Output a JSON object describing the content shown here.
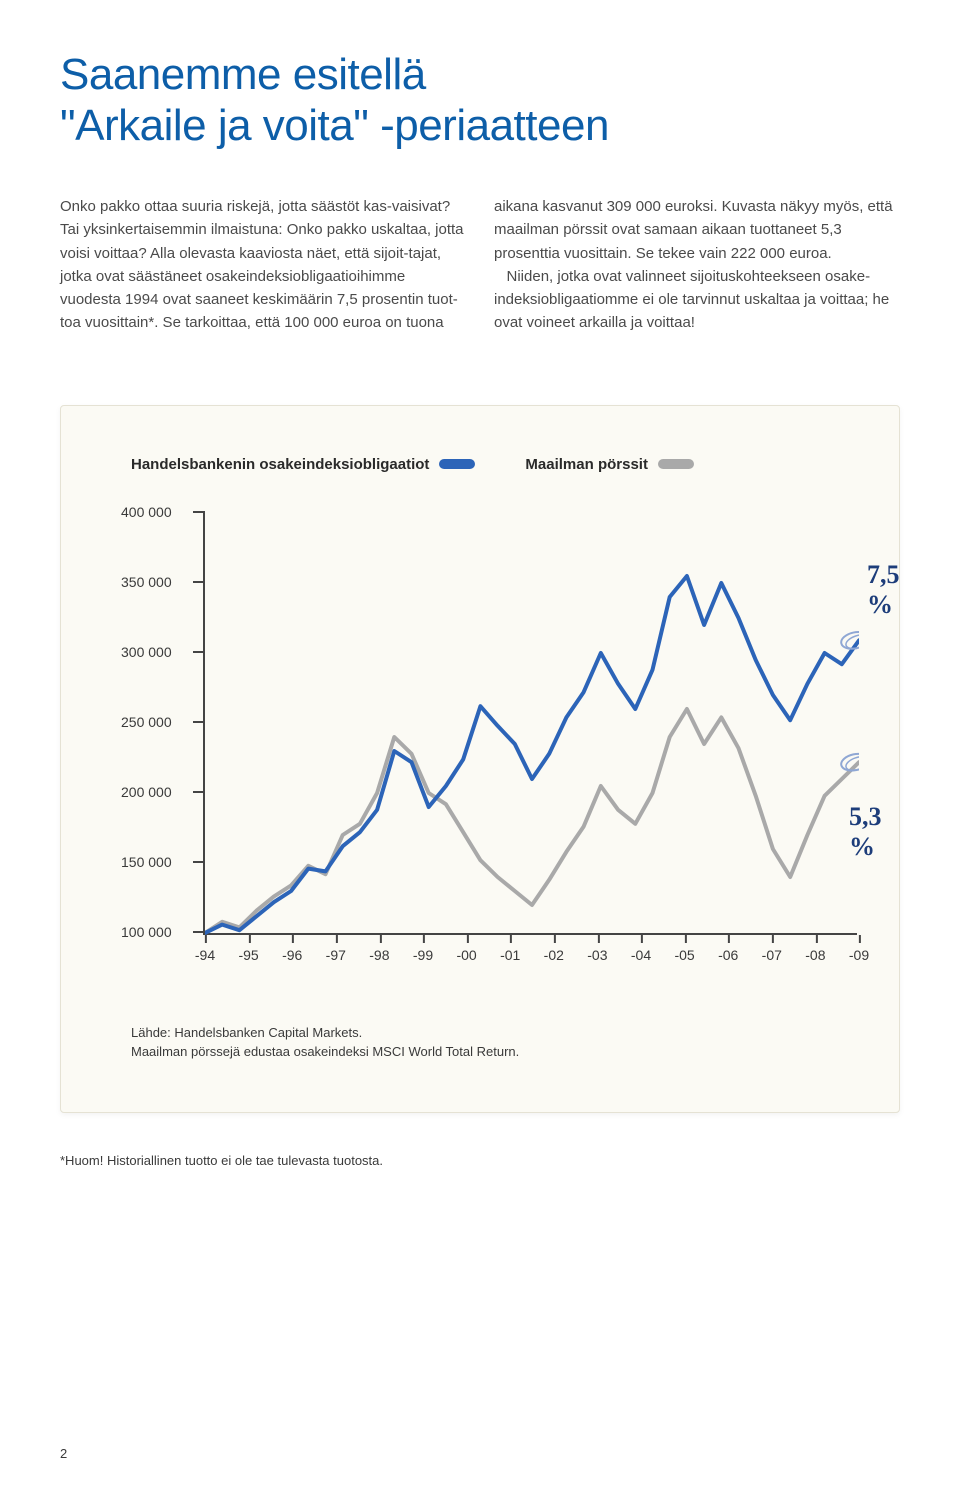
{
  "title": "Saanemme esitellä\n\"Arkaile ja voita\" -periaatteen",
  "body_left": "Onko pakko ottaa suuria riskejä, jotta säästöt kas-vaisivat? Tai yksinkertaisemmin ilmaistuna: Onko pakko uskaltaa, jotta voisi voittaa? Alla olevasta kaaviosta näet, että sijoit-tajat, jotka ovat säästäneet osakeindeksiobligaatioihimme vuodesta 1994 ovat saaneet keskimäärin 7,5 prosentin tuot-toa vuosittain*. Se tarkoittaa, että 100 000 euroa on tuona",
  "body_right": "aikana kasvanut 309 000 euroksi. Kuvasta näkyy myös, että maailman pörssit ovat samaan aikaan tuottaneet 5,3 prosenttia vuosittain. Se tekee vain 222 000 euroa.\n   Niiden, jotka ovat valinneet sijoituskohteekseen osake-indeksiobligaatiomme ei ole tarvinnut uskaltaa ja voittaa; he ovat voineet arkailla ja voittaa!",
  "chart": {
    "type": "line",
    "legend": [
      {
        "label": "Handelsbankenin osakeindeksiobligaatiot",
        "color": "#2c64b8"
      },
      {
        "label": "Maailman pörssit",
        "color": "#a9a9a9"
      }
    ],
    "y_ticks": [
      "400 000",
      "350 000",
      "300 000",
      "250 000",
      "200 000",
      "150 000",
      "100 000"
    ],
    "y_min": 100000,
    "y_max": 400000,
    "x_labels": [
      "-94",
      "-95",
      "-96",
      "-97",
      "-98",
      "-99",
      "-00",
      "-01",
      "-02",
      "-03",
      "-04",
      "-05",
      "-06",
      "-07",
      "-08",
      "-09"
    ],
    "annotations": [
      {
        "text": "7,5 %",
        "color": "#1d3d7a"
      },
      {
        "text": "5,3 %",
        "color": "#1d3d7a"
      }
    ],
    "series_blue": [
      100,
      106,
      102,
      112,
      122,
      130,
      146,
      144,
      162,
      172,
      188,
      230,
      222,
      190,
      205,
      224,
      262,
      248,
      235,
      210,
      228,
      254,
      272,
      300,
      278,
      260,
      288,
      340,
      355,
      320,
      350,
      325,
      295,
      270,
      252,
      278,
      300,
      292,
      309
    ],
    "series_grey": [
      100,
      108,
      104,
      116,
      126,
      134,
      148,
      142,
      170,
      178,
      200,
      240,
      228,
      200,
      192,
      172,
      152,
      140,
      130,
      120,
      138,
      158,
      176,
      205,
      188,
      178,
      200,
      240,
      260,
      235,
      254,
      232,
      198,
      160,
      140,
      170,
      198,
      210,
      222
    ],
    "line_width_blue": 4,
    "line_width_grey": 4,
    "background_color": "#fbfaf4"
  },
  "source_line1": "Lähde: Handelsbanken Capital Markets.",
  "source_line2": "Maailman pörssejä edustaa osakeindeksi  MSCI World Total Return.",
  "footnote": "*Huom! Historiallinen tuotto ei ole tae tulevasta tuotosta.",
  "page_number": "2"
}
